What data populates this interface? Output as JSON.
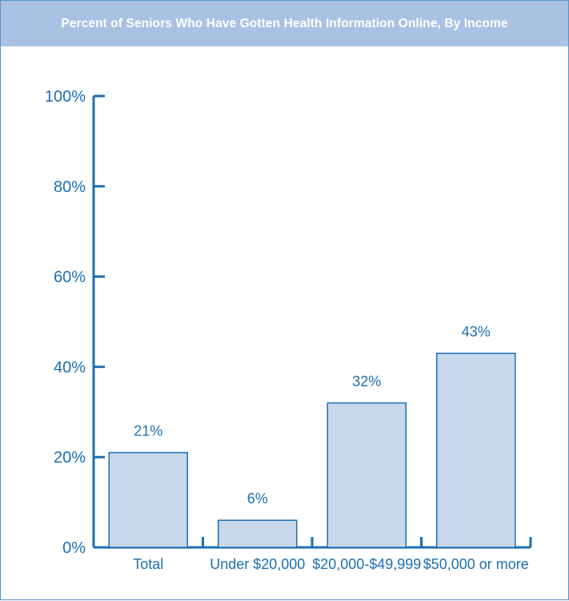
{
  "title": "Percent of Seniors Who Have Gotten Health Information Online, By Income",
  "colors": {
    "accent": "#1c6fb3",
    "bar_fill": "#c9d7ea",
    "bar_stroke": "#1c6fb3",
    "title_bar": "#a9c2e3",
    "title_text": "#ffffff"
  },
  "chart_data": {
    "type": "bar",
    "title": "Percent of Seniors Who Have Gotten Health Information Online, By Income",
    "xlabel": "",
    "ylabel": "",
    "categories": [
      "Total",
      "Under $20,000",
      "$20,000-$49,999",
      "$50,000 or more"
    ],
    "values": [
      21,
      6,
      32,
      43
    ],
    "data_labels": [
      "21%",
      "6%",
      "32%",
      "43%"
    ],
    "ylim": [
      0,
      100
    ],
    "yticks": [
      0,
      20,
      40,
      60,
      80,
      100
    ],
    "ytick_labels": [
      "0%",
      "20%",
      "40%",
      "60%",
      "80%",
      "100%"
    ],
    "grid": false,
    "legend": "none"
  }
}
